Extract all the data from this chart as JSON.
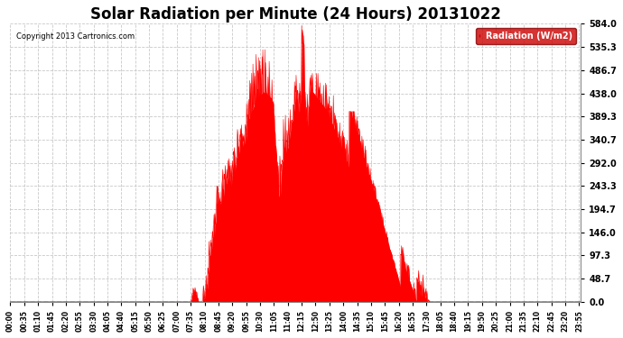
{
  "title": "Solar Radiation per Minute (24 Hours) 20131022",
  "copyright_text": "Copyright 2013 Cartronics.com",
  "legend_label": "Radiation (W/m2)",
  "yticks": [
    0.0,
    48.7,
    97.3,
    146.0,
    194.7,
    243.3,
    292.0,
    340.7,
    389.3,
    438.0,
    486.7,
    535.3,
    584.0
  ],
  "ymax": 584.0,
  "fill_color": "#FF0000",
  "line_color": "#FF0000",
  "legend_bg": "#CC0000",
  "legend_text_color": "#FFFFFF",
  "background_color": "#FFFFFF",
  "grid_color": "#BBBBBB",
  "zero_line_color": "#FF0000",
  "title_fontsize": 12,
  "copyright_fontsize": 7
}
